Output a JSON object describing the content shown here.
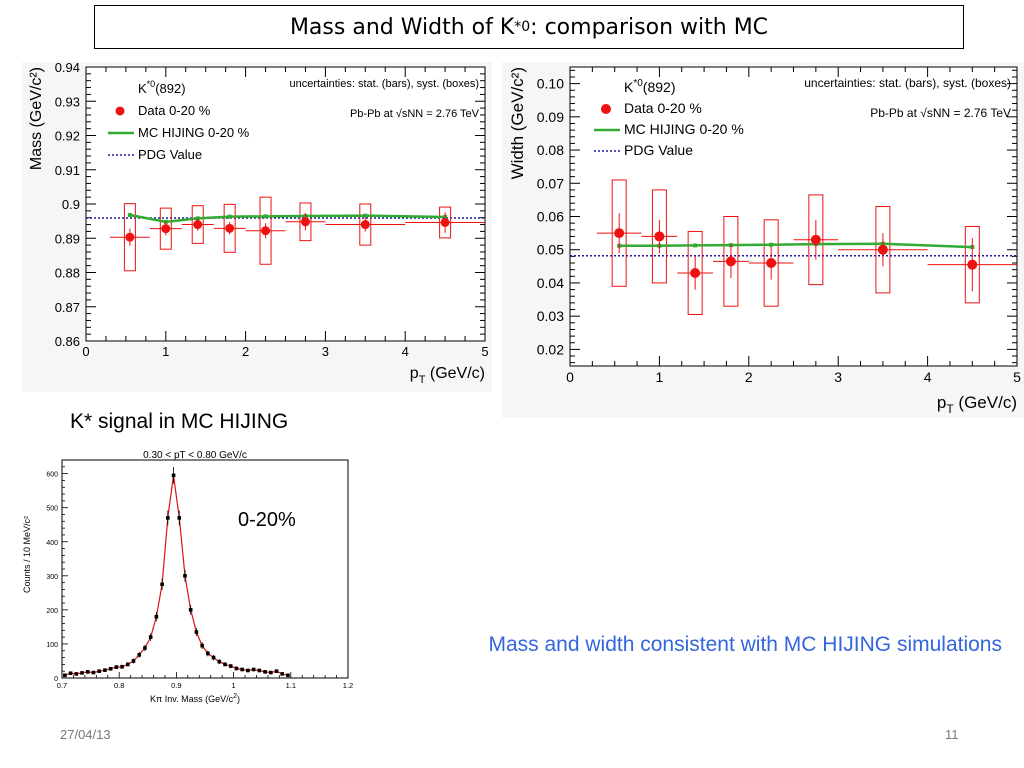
{
  "slide": {
    "title_main": "Mass and Width of K",
    "title_sup": "*0",
    "title_tail": ": comparison with MC",
    "section_label": "K* signal in MC HIJING",
    "note": "Mass and width consistent with MC HIJING simulations",
    "date": "27/04/13",
    "page": "11"
  },
  "chart_data": [
    {
      "type": "scatter",
      "panel": "mass",
      "ylabel": "Mass (GeV/c²)",
      "xlabel_main": "p",
      "xlabel_sub": "T",
      "xlabel_tail": " (GeV/c)",
      "xlim": [
        0,
        5
      ],
      "ylim": [
        0.86,
        0.94
      ],
      "xticks": [
        0,
        1,
        2,
        3,
        4,
        5
      ],
      "yticks": [
        0.86,
        0.87,
        0.88,
        0.89,
        0.9,
        0.91,
        0.92,
        0.93,
        0.94
      ],
      "ytick_labels": [
        "0.86",
        "0.87",
        "0.88",
        "0.89",
        "0.9",
        "0.91",
        "0.92",
        "0.93",
        "0.94"
      ],
      "legend_particle": "K*0(892)",
      "uncertainty_note": "uncertainties: stat. (bars), syst. (boxes)",
      "system_label": "Pb-Pb at √sNN = 2.76 TeV",
      "colors": {
        "data": "#ee1111",
        "mc": "#33aa33",
        "pdg": "#1a1aa0"
      },
      "series": [
        {
          "name": "Data 0-20 %",
          "x": [
            0.55,
            1.0,
            1.4,
            1.8,
            2.25,
            2.75,
            3.5,
            4.5
          ],
          "xerr": [
            0.25,
            0.2,
            0.2,
            0.2,
            0.25,
            0.25,
            0.5,
            0.5
          ],
          "y": [
            0.8903,
            0.8928,
            0.894,
            0.8929,
            0.8922,
            0.8948,
            0.894,
            0.8946
          ],
          "stat_err": [
            0.0025,
            0.002,
            0.0018,
            0.0018,
            0.0022,
            0.0025,
            0.002,
            0.003
          ],
          "syst_err": [
            0.0098,
            0.006,
            0.0055,
            0.007,
            0.0098,
            0.0055,
            0.006,
            0.0045
          ]
        },
        {
          "name": "MC HIJING 0-20 %",
          "x": [
            0.55,
            1.0,
            1.4,
            1.8,
            2.25,
            2.75,
            3.5,
            4.5
          ],
          "y": [
            0.8968,
            0.8948,
            0.8958,
            0.8963,
            0.8964,
            0.8965,
            0.8966,
            0.8962
          ]
        },
        {
          "name": "PDG Value",
          "y": 0.8959
        }
      ]
    },
    {
      "type": "scatter",
      "panel": "width",
      "ylabel": "Width (GeV/c²)",
      "xlabel_main": "p",
      "xlabel_sub": "T",
      "xlabel_tail": " (GeV/c)",
      "xlim": [
        0,
        5
      ],
      "ylim": [
        0.015,
        0.105
      ],
      "xticks": [
        0,
        1,
        2,
        3,
        4,
        5
      ],
      "yticks": [
        0.02,
        0.03,
        0.04,
        0.05,
        0.06,
        0.07,
        0.08,
        0.09,
        0.1
      ],
      "ytick_labels": [
        "0.02",
        "0.03",
        "0.04",
        "0.05",
        "0.06",
        "0.07",
        "0.08",
        "0.09",
        "0.10"
      ],
      "legend_particle": "K*0(892)",
      "uncertainty_note": "uncertainties: stat. (bars), syst. (boxes)",
      "system_label": "Pb-Pb at √sNN = 2.76 TeV",
      "colors": {
        "data": "#ee1111",
        "mc": "#33aa33",
        "pdg": "#1a1aa0"
      },
      "series": [
        {
          "name": "Data 0-20 %",
          "x": [
            0.55,
            1.0,
            1.4,
            1.8,
            2.25,
            2.75,
            3.5,
            4.5
          ],
          "xerr": [
            0.25,
            0.2,
            0.2,
            0.2,
            0.25,
            0.25,
            0.5,
            0.5
          ],
          "y": [
            0.055,
            0.054,
            0.043,
            0.0465,
            0.046,
            0.053,
            0.05,
            0.0455
          ],
          "stat_err": [
            0.006,
            0.005,
            0.005,
            0.005,
            0.005,
            0.006,
            0.005,
            0.008
          ],
          "syst_err": [
            0.016,
            0.014,
            0.0125,
            0.0135,
            0.013,
            0.0135,
            0.013,
            0.0115
          ]
        },
        {
          "name": "MC HIJING 0-20 %",
          "x": [
            0.55,
            1.0,
            1.4,
            1.8,
            2.25,
            2.75,
            3.5,
            4.5
          ],
          "y": [
            0.0512,
            0.0512,
            0.0513,
            0.0514,
            0.0515,
            0.0517,
            0.0518,
            0.0508
          ]
        },
        {
          "name": "PDG Value",
          "y": 0.0482
        }
      ]
    },
    {
      "type": "line",
      "panel": "signal",
      "title": "0.30 < pT < 0.80 GeV/c",
      "centrality": "0-20%",
      "xlabel_main": "Kπ Inv. Mass (GeV/c",
      "xlabel_sup": "2",
      "xlabel_tail": ")",
      "ylabel": "Counts / 10 MeV/c²",
      "xlim": [
        0.7,
        1.2
      ],
      "ylim": [
        0,
        640
      ],
      "xticks": [
        0.7,
        0.8,
        0.9,
        1.0,
        1.1,
        1.2
      ],
      "xtick_labels": [
        "0.7",
        "0.8",
        "0.9",
        "1",
        "1.1",
        "1.2"
      ],
      "yticks": [
        0,
        100,
        200,
        300,
        400,
        500,
        600
      ],
      "colors": {
        "points": "#000000",
        "fit": "#dd1111"
      },
      "series": [
        {
          "name": "points",
          "x": [
            0.705,
            0.715,
            0.725,
            0.735,
            0.745,
            0.755,
            0.765,
            0.775,
            0.785,
            0.795,
            0.805,
            0.815,
            0.825,
            0.835,
            0.845,
            0.855,
            0.865,
            0.875,
            0.885,
            0.895,
            0.905,
            0.915,
            0.925,
            0.935,
            0.945,
            0.955,
            0.965,
            0.975,
            0.985,
            0.995,
            1.005,
            1.015,
            1.025,
            1.035,
            1.045,
            1.055,
            1.065,
            1.075,
            1.085,
            1.095
          ],
          "y": [
            8,
            14,
            12,
            15,
            18,
            16,
            20,
            23,
            27,
            32,
            33,
            40,
            50,
            68,
            88,
            120,
            180,
            275,
            470,
            595,
            470,
            300,
            200,
            135,
            95,
            72,
            60,
            48,
            40,
            35,
            28,
            25,
            22,
            25,
            22,
            18,
            16,
            20,
            12,
            8
          ]
        }
      ]
    }
  ]
}
